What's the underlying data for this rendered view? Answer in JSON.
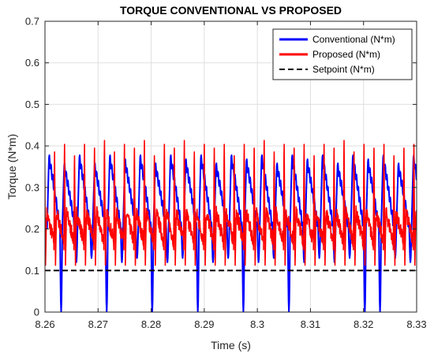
{
  "chart_data": {
    "type": "line",
    "title": "TORQUE CONVENTIONAL VS PROPOSED",
    "xlabel": "Time (s)",
    "ylabel": "Torque (N*m)",
    "xlim": [
      8.26,
      8.33
    ],
    "ylim": [
      0,
      0.7
    ],
    "x_ticks": [
      "8.26",
      "8.27",
      "8.28",
      "8.29",
      "8.3",
      "8.31",
      "8.32",
      "8.33"
    ],
    "y_ticks": [
      "0",
      "0.1",
      "0.2",
      "0.3",
      "0.4",
      "0.5",
      "0.6",
      "0.7"
    ],
    "grid": true,
    "legend_position": "top-right",
    "series": [
      {
        "name": "Conventional (N*m)",
        "color": "#0000ff",
        "pattern": "periodic sawtooth oscillation between ~0.12 and ~0.37 N*m (period ~0.0029 s); every third cycle dips to ~0.0 N*m (near t = 8.2615, 8.2700, 8.2787, 8.2873, 8.2958, 8.3044, 8.3215)",
        "peak_values": [
          0.37,
          0.35,
          0.37,
          0.35,
          0.37,
          0.36,
          0.37,
          0.35,
          0.37,
          0.36,
          0.37,
          0.35,
          0.37,
          0.36,
          0.37,
          0.35,
          0.37,
          0.36,
          0.37,
          0.35,
          0.37,
          0.36,
          0.37,
          0.35
        ],
        "min_values": [
          0.0,
          0.12,
          0.13,
          0.0,
          0.12,
          0.13,
          0.0,
          0.12,
          0.13,
          0.0,
          0.12,
          0.13,
          0.0,
          0.12,
          0.13,
          0.0,
          0.12,
          0.13,
          0.12,
          0.13,
          0.0,
          0.12,
          0.13,
          0.12
        ]
      },
      {
        "name": "Proposed (N*m)",
        "color": "#ff0000",
        "pattern": "noisy oscillation mostly between ~0.15 and ~0.24 N*m with sharp spikes up to ~0.43 N*m and dips to ~0.11 N*m (spike period ~0.0019 s)",
        "spike_peak_values": [
          0.43,
          0.41,
          0.43,
          0.4,
          0.43,
          0.42,
          0.44,
          0.41,
          0.43,
          0.42,
          0.44,
          0.4,
          0.43,
          0.42,
          0.44,
          0.41,
          0.43,
          0.42,
          0.43,
          0.4,
          0.43,
          0.42,
          0.44,
          0.41,
          0.43,
          0.42,
          0.43,
          0.4,
          0.43,
          0.42,
          0.44,
          0.41,
          0.43,
          0.42,
          0.43,
          0.4,
          0.42
        ],
        "typical_range": [
          0.15,
          0.24
        ],
        "min_value": 0.11
      },
      {
        "name": "Setpoint (N*m)",
        "color": "#000000",
        "line_style": "dashed",
        "x": [
          8.26,
          8.33
        ],
        "y": [
          0.1,
          0.1
        ]
      }
    ]
  }
}
